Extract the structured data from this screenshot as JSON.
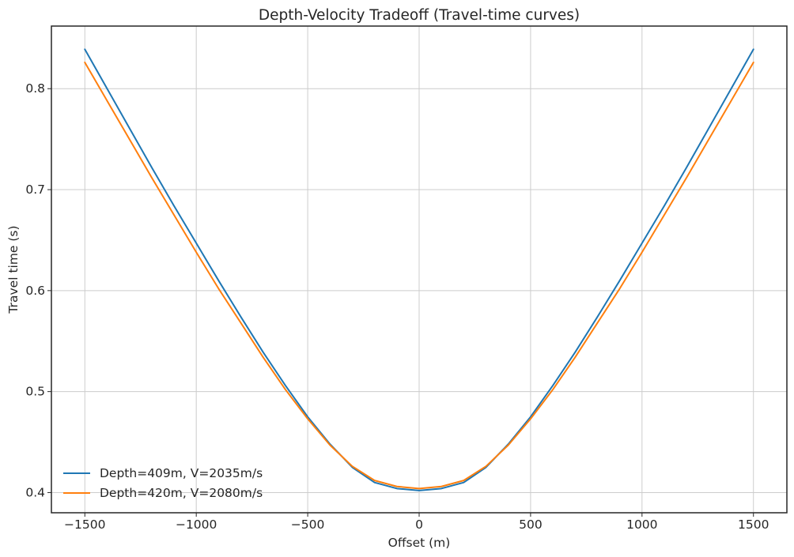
{
  "chart_data": {
    "type": "line",
    "title": "Depth-Velocity Tradeoff (Travel-time curves)",
    "xlabel": "Offset (m)",
    "ylabel": "Travel time (s)",
    "xlim": [
      -1650,
      1650
    ],
    "ylim": [
      0.38,
      0.862
    ],
    "grid": true,
    "legend_position": "lower-left",
    "xticks": [
      -1500,
      -1000,
      -500,
      0,
      500,
      1000,
      1500
    ],
    "xtick_labels": [
      "−1500",
      "−1000",
      "−500",
      "0",
      "500",
      "1000",
      "1500"
    ],
    "yticks": [
      0.4,
      0.5,
      0.6,
      0.7,
      0.8
    ],
    "ytick_labels": [
      "0.4",
      "0.5",
      "0.6",
      "0.7",
      "0.8"
    ],
    "x": [
      -1500,
      -1400,
      -1300,
      -1200,
      -1100,
      -1000,
      -900,
      -800,
      -700,
      -600,
      -500,
      -400,
      -300,
      -200,
      -100,
      0,
      100,
      200,
      300,
      400,
      500,
      600,
      700,
      800,
      900,
      1000,
      1100,
      1200,
      1300,
      1400,
      1500
    ],
    "series": [
      {
        "name": "Depth=409m, V=2035m/s",
        "color": "#1f77b4",
        "values": [
          0.839,
          0.8,
          0.761,
          0.722,
          0.684,
          0.647,
          0.61,
          0.574,
          0.539,
          0.506,
          0.475,
          0.448,
          0.425,
          0.41,
          0.404,
          0.402,
          0.404,
          0.41,
          0.425,
          0.448,
          0.475,
          0.506,
          0.539,
          0.574,
          0.61,
          0.647,
          0.684,
          0.722,
          0.761,
          0.8,
          0.839
        ]
      },
      {
        "name": "Depth=420m, V=2080m/s",
        "color": "#ff7f0e",
        "values": [
          0.826,
          0.788,
          0.75,
          0.712,
          0.675,
          0.638,
          0.602,
          0.568,
          0.534,
          0.502,
          0.473,
          0.447,
          0.426,
          0.412,
          0.406,
          0.404,
          0.406,
          0.412,
          0.426,
          0.447,
          0.473,
          0.502,
          0.534,
          0.568,
          0.602,
          0.638,
          0.675,
          0.712,
          0.75,
          0.788,
          0.826
        ]
      }
    ]
  }
}
